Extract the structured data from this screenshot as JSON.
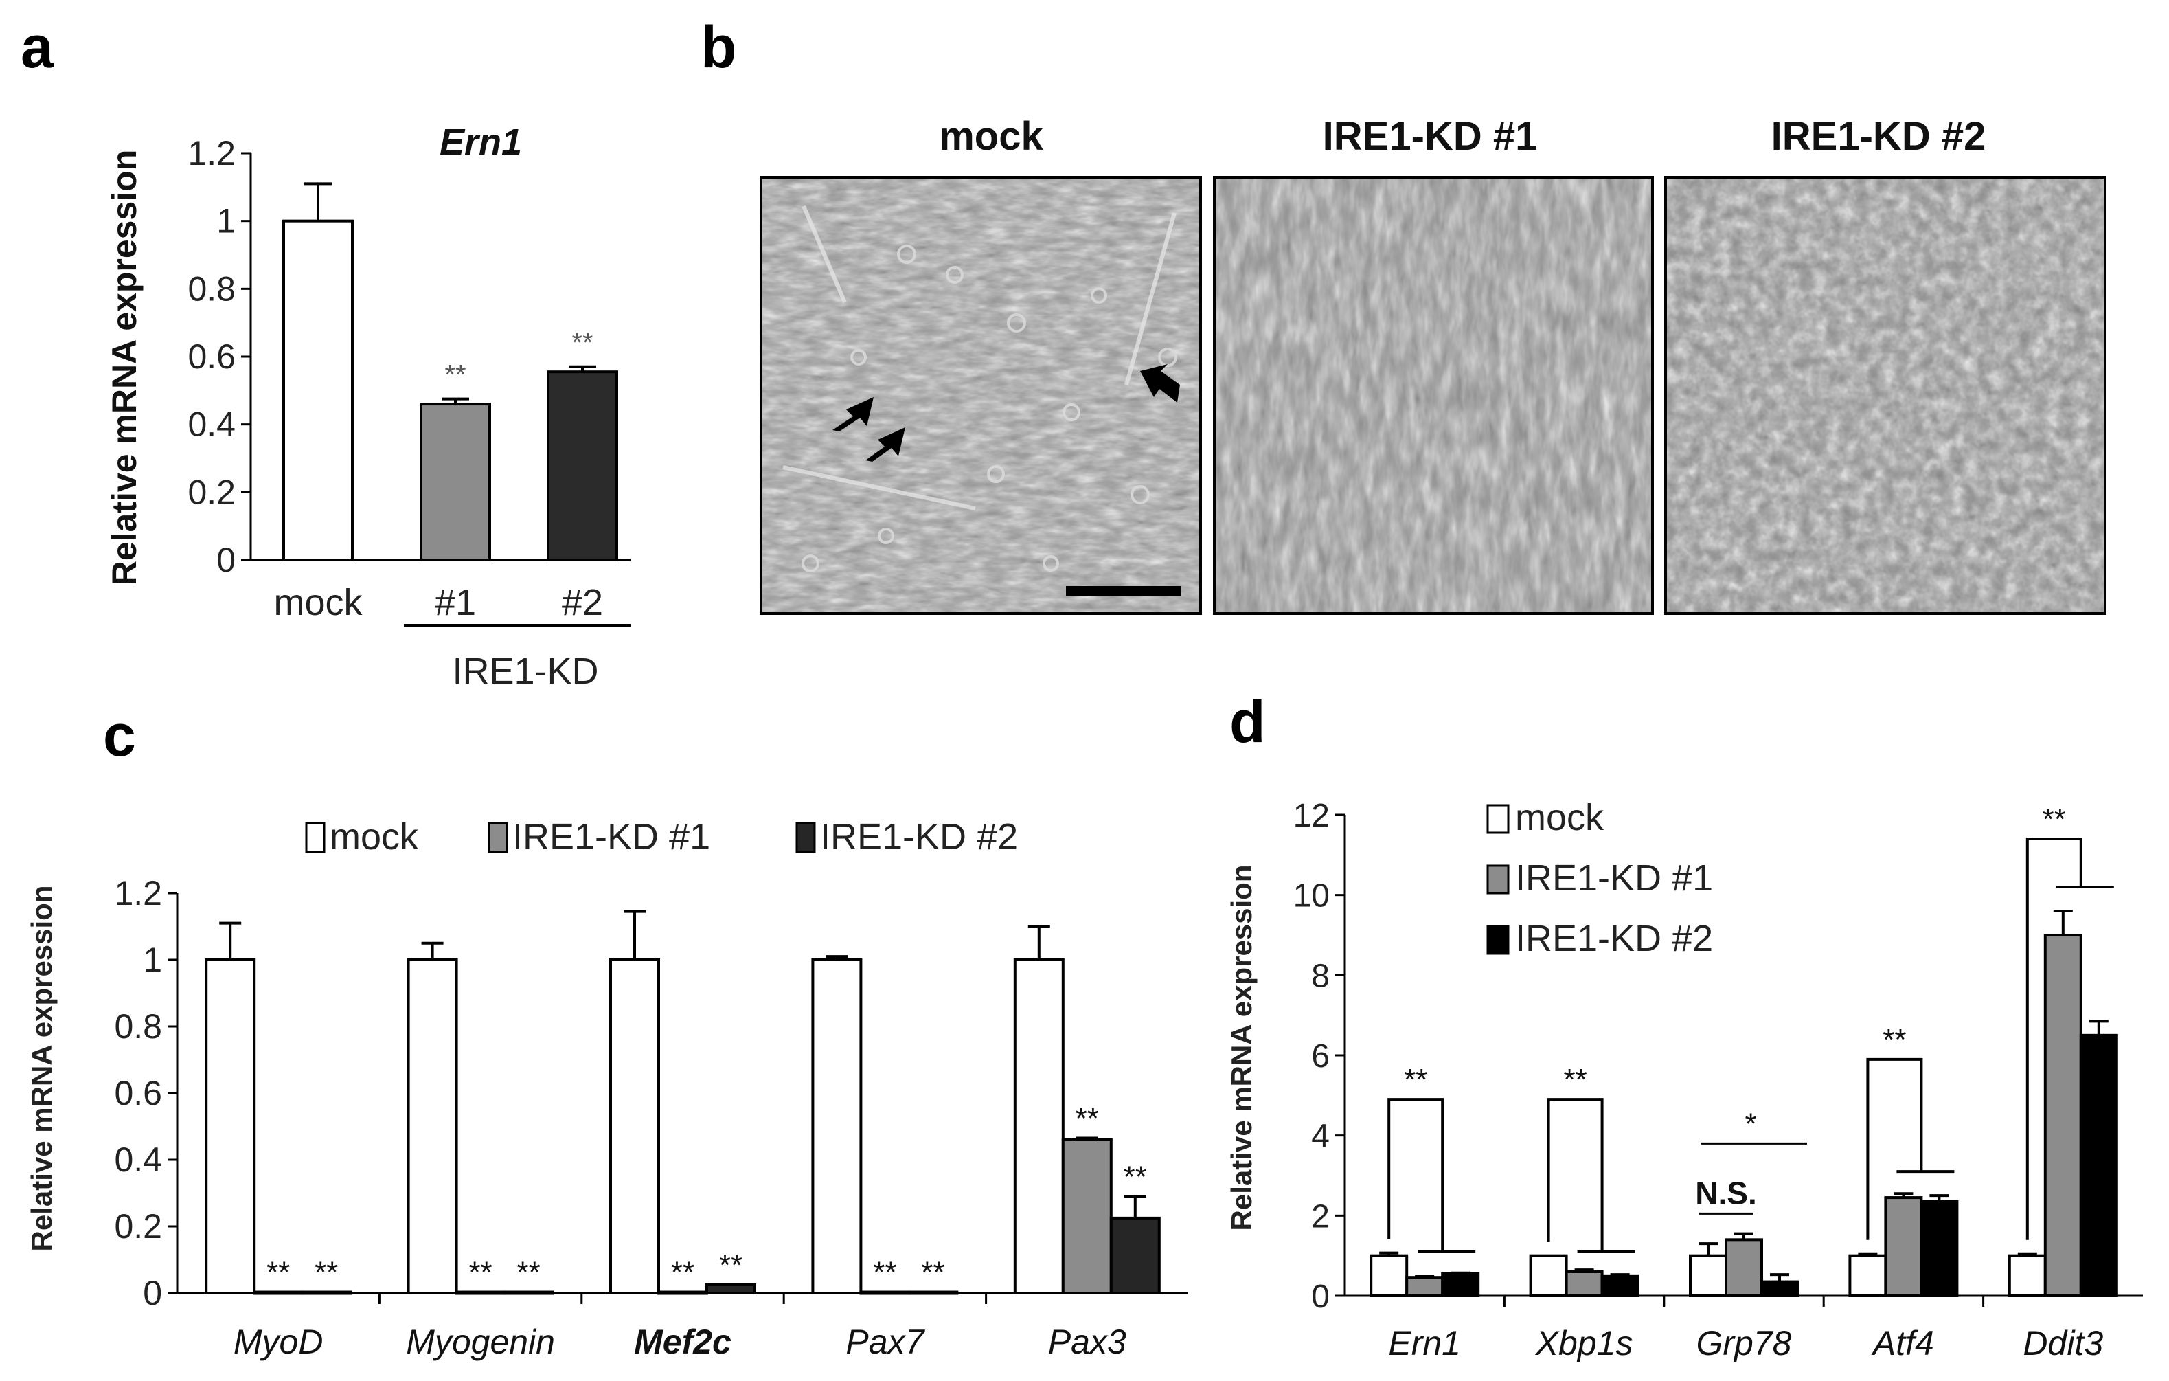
{
  "panels": {
    "a": {
      "letter": "a",
      "title": "Ern1",
      "ylabel": "Relative mRNA expression",
      "group_label": "IRE1-KD",
      "sig": [
        "**",
        "**"
      ],
      "yticks": [
        "0",
        "0.2",
        "0.4",
        "0.6",
        "0.8",
        "1",
        "1.2"
      ]
    },
    "b": {
      "letter": "b",
      "image_titles": [
        "mock",
        "IRE1-KD #1",
        "IRE1-KD #2"
      ]
    },
    "c": {
      "letter": "c",
      "ylabel": "Relative mRNA expression",
      "legend": [
        "mock",
        "IRE1-KD #1",
        "IRE1-KD #2"
      ],
      "yticks": [
        "0",
        "0.2",
        "0.4",
        "0.6",
        "0.8",
        "1",
        "1.2"
      ],
      "sig_labels": [
        [
          "**",
          "**"
        ],
        [
          "**",
          "**"
        ],
        [
          "**",
          "**"
        ],
        [
          "**",
          "**"
        ],
        [
          "**",
          "**"
        ]
      ]
    },
    "d": {
      "letter": "d",
      "ylabel": "Relative mRNA expression",
      "legend": [
        "mock",
        "IRE1-KD #1",
        "IRE1-KD #2"
      ],
      "yticks": [
        "0",
        "2",
        "4",
        "6",
        "8",
        "10",
        "12"
      ],
      "sig_labels": [
        "**",
        "**",
        "*",
        "**",
        "**"
      ],
      "ns_label": "N.S."
    }
  },
  "colors": {
    "mock": "#ffffff",
    "kd1": "#8c8c8c",
    "kd2_a": "#2b2b2b",
    "kd2_c": "#262626",
    "kd2_d": "#000000"
  },
  "chart_data": [
    {
      "type": "bar",
      "title": "Ern1",
      "categories": [
        "mock",
        "#1",
        "#2"
      ],
      "values": [
        1.0,
        0.46,
        0.555
      ],
      "errors": [
        0.11,
        0.015,
        0.015
      ],
      "xlabel": "IRE1-KD",
      "ylabel": "Relative mRNA expression",
      "ylim": [
        0,
        1.2
      ],
      "grid": false
    },
    {
      "type": "bar",
      "categories": [
        "MyoD",
        "Myogenin",
        "Mef2c",
        "Pax7",
        "Pax3"
      ],
      "series": [
        {
          "name": "mock",
          "values": [
            1.0,
            1.0,
            1.0,
            1.0,
            1.0
          ],
          "errors": [
            0.11,
            0.05,
            0.145,
            0.01,
            0.1
          ]
        },
        {
          "name": "IRE1-KD #1",
          "values": [
            0.003,
            0.003,
            0.003,
            0.003,
            0.46
          ],
          "errors": [
            0,
            0,
            0,
            0,
            0.005
          ]
        },
        {
          "name": "IRE1-KD #2",
          "values": [
            0.003,
            0.003,
            0.025,
            0.003,
            0.225
          ],
          "errors": [
            0,
            0,
            0,
            0,
            0.065
          ]
        }
      ],
      "ylabel": "Relative mRNA expression",
      "ylim": [
        0,
        1.2
      ],
      "legend_position": "top",
      "grid": false
    },
    {
      "type": "bar",
      "categories": [
        "Ern1",
        "Xbp1s",
        "Grp78",
        "Atf4",
        "Ddit3"
      ],
      "series": [
        {
          "name": "mock",
          "values": [
            1.0,
            1.0,
            1.0,
            1.0,
            1.0
          ],
          "errors": [
            0.07,
            0,
            0.3,
            0.05,
            0.05
          ]
        },
        {
          "name": "IRE1-KD #1",
          "values": [
            0.46,
            0.6,
            1.4,
            2.45,
            9.0
          ],
          "errors": [
            0.02,
            0.05,
            0.15,
            0.1,
            0.6
          ]
        },
        {
          "name": "IRE1-KD #2",
          "values": [
            0.55,
            0.5,
            0.35,
            2.35,
            6.5
          ],
          "errors": [
            0.02,
            0.03,
            0.18,
            0.15,
            0.35
          ]
        }
      ],
      "ylabel": "Relative mRNA expression",
      "ylim": [
        0,
        12
      ],
      "legend_position": "top-left",
      "grid": false
    }
  ]
}
